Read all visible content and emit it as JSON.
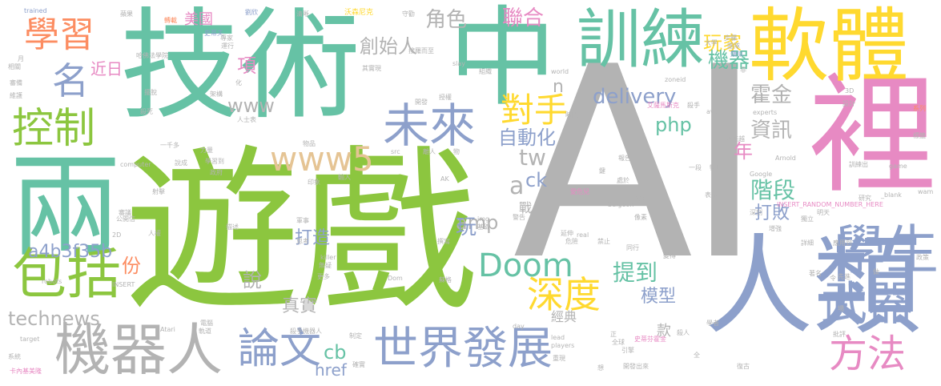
{
  "palette": {
    "green": "#8cc63f",
    "teal": "#66c2a5",
    "gray": "#b3b3b3",
    "blue": "#8da0cb",
    "pink": "#e78ac3",
    "yellow": "#ffd92f",
    "orange": "#fc8d62",
    "tan": "#e5c494"
  },
  "words": [
    {
      "text": "AI",
      "color": "gray",
      "prominence": "xxl"
    },
    {
      "text": "遊戲",
      "color": "green",
      "prominence": "xxl"
    },
    {
      "text": "技術",
      "color": "teal",
      "prominence": "xl"
    },
    {
      "text": "中",
      "color": "teal",
      "prominence": "xl"
    },
    {
      "text": "人類",
      "color": "blue",
      "prominence": "xl"
    },
    {
      "text": "兩",
      "color": "teal",
      "prominence": "xl"
    },
    {
      "text": "裡",
      "color": "pink",
      "prominence": "xl"
    },
    {
      "text": "軟體",
      "color": "yellow",
      "prominence": "l"
    },
    {
      "text": "訓練",
      "color": "teal",
      "prominence": "l"
    },
    {
      "text": "機器人",
      "color": "gray",
      "prominence": "l"
    },
    {
      "text": "學生",
      "color": "blue",
      "prominence": "l"
    },
    {
      "text": "包括",
      "color": "green",
      "prominence": "l"
    },
    {
      "text": "武器",
      "color": "blue",
      "prominence": "m"
    },
    {
      "text": "世界發展",
      "color": "blue",
      "prominence": "m"
    },
    {
      "text": "未來",
      "color": "blue",
      "prominence": "m"
    },
    {
      "text": "學習",
      "color": "orange",
      "prominence": "m"
    },
    {
      "text": "控制",
      "color": "green",
      "prominence": "m"
    },
    {
      "text": "論文",
      "color": "blue",
      "prominence": "m"
    },
    {
      "text": "方法",
      "color": "pink",
      "prominence": "m"
    },
    {
      "text": "深度",
      "color": "yellow",
      "prominence": "m"
    },
    {
      "text": "Doom",
      "color": "teal",
      "prominence": "m"
    },
    {
      "text": "名",
      "color": "blue",
      "prominence": "m"
    },
    {
      "text": "www5",
      "color": "tan",
      "prominence": "m"
    },
    {
      "text": "對手",
      "color": "yellow",
      "prominence": "m"
    },
    {
      "text": "delivery",
      "color": "blue",
      "prominence": "s"
    },
    {
      "text": "technews",
      "color": "gray",
      "prominence": "s"
    },
    {
      "text": "a4b3f35b",
      "color": "blue",
      "prominence": "s"
    },
    {
      "text": "自動化",
      "color": "blue",
      "prominence": "s"
    },
    {
      "text": "階段",
      "color": "teal",
      "prominence": "s"
    },
    {
      "text": "角色",
      "color": "gray",
      "prominence": "s"
    },
    {
      "text": "聯合",
      "color": "pink",
      "prominence": "s"
    },
    {
      "text": "創始人",
      "color": "gray",
      "prominence": "s"
    },
    {
      "text": "玩家",
      "color": "yellow",
      "prominence": "s"
    },
    {
      "text": "機器",
      "color": "teal",
      "prominence": "s"
    },
    {
      "text": "霍金",
      "color": "gray",
      "prominence": "s"
    },
    {
      "text": "資訊",
      "color": "gray",
      "prominence": "s"
    },
    {
      "text": "www",
      "color": "gray",
      "prominence": "s"
    },
    {
      "text": "php",
      "color": "teal",
      "prominence": "s"
    },
    {
      "text": "amp",
      "color": "gray",
      "prominence": "s"
    },
    {
      "text": "tw",
      "color": "gray",
      "prominence": "s"
    },
    {
      "text": "ck",
      "color": "blue",
      "prominence": "s"
    },
    {
      "text": "a",
      "color": "gray",
      "prominence": "s"
    },
    {
      "text": "n",
      "color": "gray",
      "prominence": "s"
    },
    {
      "text": "年",
      "color": "pink",
      "prominence": "s"
    },
    {
      "text": "打敗",
      "color": "blue",
      "prominence": "s"
    },
    {
      "text": "提到",
      "color": "teal",
      "prominence": "s"
    },
    {
      "text": "模型",
      "color": "blue",
      "prominence": "s"
    },
    {
      "text": "真實",
      "color": "gray",
      "prominence": "s"
    },
    {
      "text": "打造",
      "color": "blue",
      "prominence": "s"
    },
    {
      "text": "玩",
      "color": "blue",
      "prominence": "s"
    },
    {
      "text": "說",
      "color": "gray",
      "prominence": "s"
    },
    {
      "text": "份",
      "color": "orange",
      "prominence": "s"
    },
    {
      "text": "cb",
      "color": "teal",
      "prominence": "s"
    },
    {
      "text": "href",
      "color": "blue",
      "prominence": "s"
    },
    {
      "text": "美國",
      "color": "pink",
      "prominence": "s"
    },
    {
      "text": "近日",
      "color": "pink",
      "prominence": "s"
    },
    {
      "text": "項",
      "color": "pink",
      "prominence": "s"
    },
    {
      "text": "經典",
      "color": "gray",
      "prominence": "xs"
    },
    {
      "text": "款",
      "color": "gray",
      "prominence": "xs"
    },
    {
      "text": "戰",
      "color": "gray",
      "prominence": "xs"
    },
    {
      "text": "trained",
      "color": "blue",
      "prominence": "xxs"
    },
    {
      "text": "蘋果",
      "color": "gray",
      "prominence": "xxs"
    },
    {
      "text": "轉載",
      "color": "orange",
      "prominence": "xxs"
    },
    {
      "text": "劉欣",
      "color": "blue",
      "prominence": "xxs"
    },
    {
      "text": "清晰",
      "color": "gray",
      "prominence": "xxs"
    },
    {
      "text": "沃森尼克",
      "color": "yellow",
      "prominence": "xxs"
    },
    {
      "text": "守勸",
      "color": "gray",
      "prominence": "xxs"
    },
    {
      "text": "大學",
      "color": "gray",
      "prominence": "xxs"
    },
    {
      "text": "步驟",
      "color": "gray",
      "prominence": "xxs"
    },
    {
      "text": "團隊",
      "color": "gray",
      "prominence": "xxs"
    },
    {
      "text": "類似",
      "color": "blue",
      "prominence": "xxs"
    },
    {
      "text": "史蒂夫",
      "color": "blue",
      "prominence": "xxs"
    },
    {
      "text": "運行",
      "color": "gray",
      "prominence": "xxs"
    },
    {
      "text": "哈佛法學院",
      "color": "gray",
      "prominence": "xxs"
    },
    {
      "text": "搜羅而至",
      "color": "gray",
      "prominence": "xxs"
    },
    {
      "text": "其實現",
      "color": "gray",
      "prominence": "xxs"
    },
    {
      "text": "slay",
      "color": "gray",
      "prominence": "xxs"
    },
    {
      "text": "world",
      "color": "gray",
      "prominence": "xxs"
    },
    {
      "text": "zoneid",
      "color": "gray",
      "prominence": "xxs"
    },
    {
      "text": "3D",
      "color": "gray",
      "prominence": "xxs"
    },
    {
      "text": "avw",
      "color": "gray",
      "prominence": "xxs"
    },
    {
      "text": "experts",
      "color": "gray",
      "prominence": "xxs"
    },
    {
      "text": "系列",
      "color": "orange",
      "prominence": "xxs"
    },
    {
      "text": "艾薩馬斯克",
      "color": "pink",
      "prominence": "xxs"
    },
    {
      "text": "殺手",
      "color": "gray",
      "prominence": "xxs"
    },
    {
      "text": "越來越",
      "color": "gray",
      "prominence": "xxs"
    },
    {
      "text": "報告",
      "color": "gray",
      "prominence": "xxs"
    },
    {
      "text": "一段",
      "color": "gray",
      "prominence": "xxs"
    },
    {
      "text": "特色",
      "color": "gray",
      "prominence": "xxs"
    },
    {
      "text": "訓練出",
      "color": "gray",
      "prominence": "xxs"
    },
    {
      "text": "Arnold",
      "color": "gray",
      "prominence": "xxs"
    },
    {
      "text": "Google",
      "color": "gray",
      "prominence": "xxs"
    },
    {
      "text": "game",
      "color": "gray",
      "prominence": "xxs"
    },
    {
      "text": "_blank",
      "color": "gray",
      "prominence": "xxs"
    },
    {
      "text": "INSERT_RANDOM_NUMBER_HERE",
      "color": "pink",
      "prominence": "xxs"
    },
    {
      "text": "研究",
      "color": "gray",
      "prominence": "xxs"
    },
    {
      "text": "Galgeon",
      "color": "gray",
      "prominence": "xxs"
    },
    {
      "text": "愛危兒",
      "color": "pink",
      "prominence": "xxs"
    },
    {
      "text": "本文",
      "color": "gray",
      "prominence": "xxs"
    },
    {
      "text": "深刻",
      "color": "gray",
      "prominence": "xxs"
    },
    {
      "text": "獨立",
      "color": "gray",
      "prominence": "xxs"
    },
    {
      "text": "明天",
      "color": "gray",
      "prominence": "xxs"
    },
    {
      "text": "增強",
      "color": "gray",
      "prominence": "xxs"
    },
    {
      "text": "像素",
      "color": "gray",
      "prominence": "xxs"
    },
    {
      "text": "警告",
      "color": "gray",
      "prominence": "xxs"
    },
    {
      "text": "延伸",
      "color": "gray",
      "prominence": "xxs"
    },
    {
      "text": "危險",
      "color": "gray",
      "prominence": "xxs"
    },
    {
      "text": "禁止",
      "color": "gray",
      "prominence": "xxs"
    },
    {
      "text": "同行",
      "color": "gray",
      "prominence": "xxs"
    },
    {
      "text": "詳細",
      "color": "gray",
      "prominence": "xxs"
    },
    {
      "text": "應用到",
      "color": "gray",
      "prominence": "xxs"
    },
    {
      "text": "著名",
      "color": "gray",
      "prominence": "xxs"
    },
    {
      "text": "做",
      "color": "gray",
      "prominence": "xxs"
    },
    {
      "text": "先進",
      "color": "gray",
      "prominence": "xxs"
    },
    {
      "text": "學者",
      "color": "gray",
      "prominence": "xxs"
    },
    {
      "text": "殺人",
      "color": "gray",
      "prominence": "xxs"
    },
    {
      "text": "史蒂芬霍金",
      "color": "pink",
      "prominence": "xxs"
    },
    {
      "text": "全球",
      "color": "gray",
      "prominence": "xxs"
    },
    {
      "text": "批評",
      "color": "gray",
      "prominence": "xxs"
    },
    {
      "text": "復古",
      "color": "gray",
      "prominence": "xxs"
    },
    {
      "text": "開發出來",
      "color": "gray",
      "prominence": "xxs"
    },
    {
      "text": "players",
      "color": "gray",
      "prominence": "xxs"
    },
    {
      "text": "lead",
      "color": "gray",
      "prominence": "xxs"
    },
    {
      "text": "day",
      "color": "gray",
      "prominence": "xxs"
    },
    {
      "text": "確實",
      "color": "gray",
      "prominence": "xxs"
    },
    {
      "text": "制定",
      "color": "gray",
      "prominence": "xxs"
    },
    {
      "text": "殺手機器人",
      "color": "gray",
      "prominence": "xxs"
    },
    {
      "text": "Atari",
      "color": "gray",
      "prominence": "xxs"
    },
    {
      "text": "電腦",
      "color": "gray",
      "prominence": "xxs"
    },
    {
      "text": "target",
      "color": "gray",
      "prominence": "xxs"
    },
    {
      "text": "系統",
      "color": "gray",
      "prominence": "xxs"
    },
    {
      "text": "卡內基美隆",
      "color": "pink",
      "prominence": "xxs"
    },
    {
      "text": "軌道",
      "color": "gray",
      "prominence": "xxs"
    },
    {
      "text": "robots",
      "color": "gray",
      "prominence": "xxs"
    },
    {
      "text": "INSERT",
      "color": "gray",
      "prominence": "xxs"
    },
    {
      "text": "2D",
      "color": "gray",
      "prominence": "xxs"
    },
    {
      "text": "公開信",
      "color": "gray",
      "prominence": "xxs"
    },
    {
      "text": "人權",
      "color": "gray",
      "prominence": "xxs"
    },
    {
      "text": "射擊",
      "color": "gray",
      "prominence": "xxs"
    },
    {
      "text": "審議",
      "color": "gray",
      "prominence": "xxs"
    },
    {
      "text": "computer",
      "color": "gray",
      "prominence": "xxs"
    },
    {
      "text": "說成",
      "color": "gray",
      "prominence": "xxs"
    },
    {
      "text": "一千多",
      "color": "gray",
      "prominence": "xxs"
    },
    {
      "text": "力量",
      "color": "gray",
      "prominence": "xxs"
    },
    {
      "text": "學習到",
      "color": "gray",
      "prominence": "xxs"
    },
    {
      "text": "政府",
      "color": "gray",
      "prominence": "xxs"
    },
    {
      "text": "物品",
      "color": "gray",
      "prominence": "xxs"
    },
    {
      "text": "印象",
      "color": "gray",
      "prominence": "xxs"
    },
    {
      "text": "輸入",
      "color": "gray",
      "prominence": "xxs"
    },
    {
      "text": "離人",
      "color": "gray",
      "prominence": "xxs"
    },
    {
      "text": "src",
      "color": "gray",
      "prominence": "xxs"
    },
    {
      "text": "AK",
      "color": "gray",
      "prominence": "xxs"
    },
    {
      "text": "img",
      "color": "gray",
      "prominence": "xxs"
    },
    {
      "text": "基礎",
      "color": "gray",
      "prominence": "xxs"
    },
    {
      "text": "real",
      "color": "gray",
      "prominence": "xxs"
    },
    {
      "text": "killer",
      "color": "gray",
      "prominence": "xxs"
    },
    {
      "text": "思考",
      "color": "gray",
      "prominence": "xxs"
    },
    {
      "text": "撰寫",
      "color": "gray",
      "prominence": "xxs"
    },
    {
      "text": "更多",
      "color": "gray",
      "prominence": "xxs"
    },
    {
      "text": "無疑",
      "color": "gray",
      "prominence": "xxs"
    },
    {
      "text": "Dom",
      "color": "gray",
      "prominence": "xxs"
    },
    {
      "text": "蘇格",
      "color": "gray",
      "prominence": "xxs"
    },
    {
      "text": "描述",
      "color": "gray",
      "prominence": "xxs"
    },
    {
      "text": "軍事",
      "color": "gray",
      "prominence": "xxs"
    },
    {
      "text": "相關",
      "color": "gray",
      "prominence": "xxs"
    },
    {
      "text": "審備",
      "color": "gray",
      "prominence": "xxs"
    },
    {
      "text": "維護",
      "color": "gray",
      "prominence": "xxs"
    },
    {
      "text": "組織",
      "color": "gray",
      "prominence": "xxs"
    },
    {
      "text": "擺脫",
      "color": "gray",
      "prominence": "xxs"
    },
    {
      "text": "殺死",
      "color": "gray",
      "prominence": "xxs"
    },
    {
      "text": "時間",
      "color": "gray",
      "prominence": "xxs"
    },
    {
      "text": "授權",
      "color": "gray",
      "prominence": "xxs"
    },
    {
      "text": "開發",
      "color": "gray",
      "prominence": "xxs"
    },
    {
      "text": "人士表",
      "color": "gray",
      "prominence": "xxs"
    },
    {
      "text": "架構",
      "color": "gray",
      "prominence": "xxs"
    },
    {
      "text": "專家",
      "color": "gray",
      "prominence": "xxs"
    },
    {
      "text": "月",
      "color": "gray",
      "prominence": "xxs"
    },
    {
      "text": "化",
      "color": "gray",
      "prominence": "xxs"
    },
    {
      "text": "處於",
      "color": "gray",
      "prominence": "xxs"
    },
    {
      "text": "表示",
      "color": "gray",
      "prominence": "xxs"
    },
    {
      "text": "變得",
      "color": "gray",
      "prominence": "xxs"
    },
    {
      "text": "非",
      "color": "gray",
      "prominence": "xxs"
    },
    {
      "text": "場",
      "color": "gray",
      "prominence": "xxs"
    },
    {
      "text": "令",
      "color": "gray",
      "prominence": "xxs"
    },
    {
      "text": "想",
      "color": "gray",
      "prominence": "xxs"
    },
    {
      "text": "正",
      "color": "gray",
      "prominence": "xxs"
    },
    {
      "text": "重現",
      "color": "gray",
      "prominence": "xxs"
    },
    {
      "text": "引擎",
      "color": "gray",
      "prominence": "xxs"
    },
    {
      "text": "鍵",
      "color": "gray",
      "prominence": "xxs"
    },
    {
      "text": "物",
      "color": "gray",
      "prominence": "xxs"
    },
    {
      "text": "標籤",
      "color": "gray",
      "prominence": "xxs"
    },
    {
      "text": "設計",
      "color": "gray",
      "prominence": "xxs"
    },
    {
      "text": "wam",
      "color": "gray",
      "prominence": "xxs"
    },
    {
      "text": "政策",
      "color": "gray",
      "prominence": "xxs"
    },
    {
      "text": "全",
      "color": "gray",
      "prominence": "xxs"
    }
  ]
}
